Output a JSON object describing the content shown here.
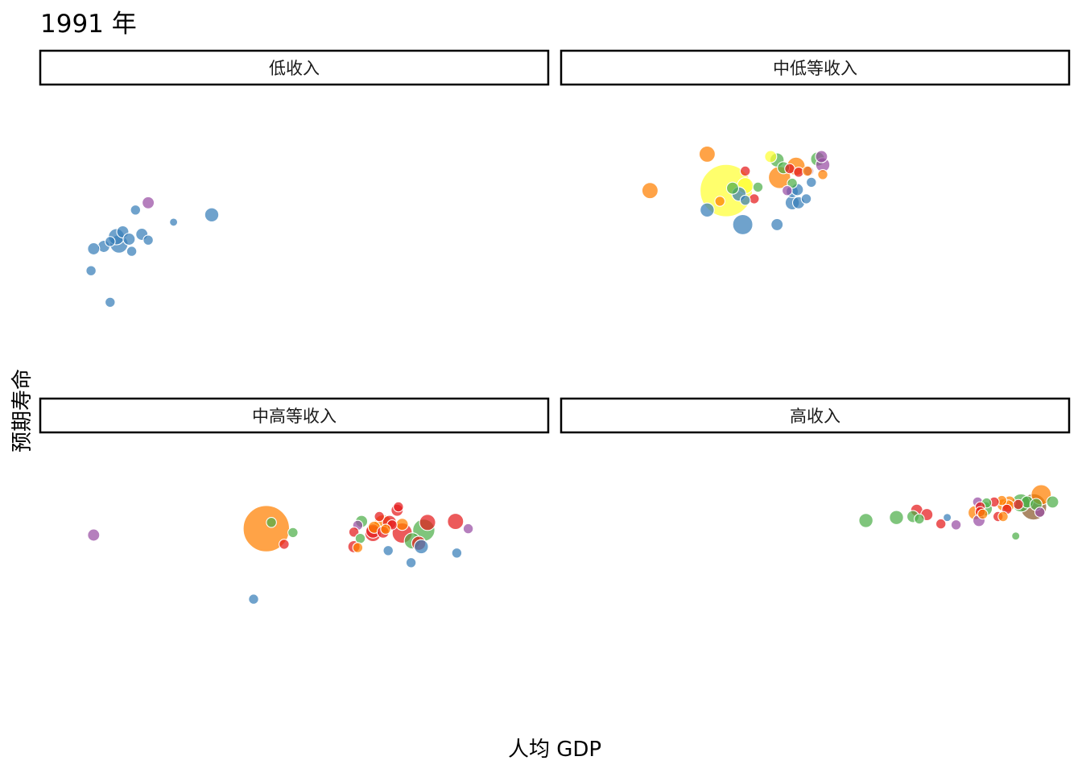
{
  "chart_data": {
    "type": "scatter",
    "title": "1991 年",
    "xlabel": "人均 GDP",
    "ylabel": "预期寿命",
    "x_scale": "log",
    "xlim": [
      7,
      11
    ],
    "ylim": [
      22,
      86
    ],
    "grid": false,
    "legend": "none",
    "series_colors": {
      "Africa": "#377eb8",
      "Americas": "#e41a1c",
      "Asia": "#ff7f00",
      "Europe": "#4daf4a",
      "Oceania": "#984ea3",
      "Asia-large": "#ffff33"
    },
    "panels": [
      {
        "label": "低收入",
        "points": [
          {
            "x": 7.85,
            "y": 62.0,
            "size": 6,
            "c": "#984ea3"
          },
          {
            "x": 7.75,
            "y": 60.5,
            "size": 5,
            "c": "#377eb8"
          },
          {
            "x": 8.35,
            "y": 59.5,
            "size": 7,
            "c": "#377eb8"
          },
          {
            "x": 8.05,
            "y": 58.0,
            "size": 4,
            "c": "#377eb8"
          },
          {
            "x": 7.65,
            "y": 56.0,
            "size": 6,
            "c": "#377eb8"
          },
          {
            "x": 7.6,
            "y": 55.0,
            "size": 8,
            "c": "#377eb8"
          },
          {
            "x": 7.8,
            "y": 55.5,
            "size": 6,
            "c": "#377eb8"
          },
          {
            "x": 7.7,
            "y": 54.5,
            "size": 6,
            "c": "#377eb8"
          },
          {
            "x": 7.55,
            "y": 54.0,
            "size": 5,
            "c": "#377eb8"
          },
          {
            "x": 7.62,
            "y": 53.5,
            "size": 9,
            "c": "#377eb8"
          },
          {
            "x": 7.5,
            "y": 53.0,
            "size": 6,
            "c": "#377eb8"
          },
          {
            "x": 7.85,
            "y": 54.3,
            "size": 5,
            "c": "#377eb8"
          },
          {
            "x": 7.42,
            "y": 52.5,
            "size": 6,
            "c": "#377eb8"
          },
          {
            "x": 7.72,
            "y": 52.0,
            "size": 5,
            "c": "#377eb8"
          },
          {
            "x": 7.4,
            "y": 48.0,
            "size": 5,
            "c": "#377eb8"
          },
          {
            "x": 7.55,
            "y": 41.5,
            "size": 5,
            "c": "#377eb8"
          }
        ]
      },
      {
        "label": "中低等收入",
        "points": [
          {
            "x": 8.15,
            "y": 72.0,
            "size": 8,
            "c": "#ff7f00"
          },
          {
            "x": 8.65,
            "y": 71.5,
            "size": 6,
            "c": "#ffff33"
          },
          {
            "x": 9.05,
            "y": 71.5,
            "size": 6,
            "c": "#984ea3"
          },
          {
            "x": 8.7,
            "y": 70.8,
            "size": 7,
            "c": "#4daf4a"
          },
          {
            "x": 9.02,
            "y": 71.0,
            "size": 7,
            "c": "#4daf4a"
          },
          {
            "x": 8.85,
            "y": 69.5,
            "size": 9,
            "c": "#ff7f00"
          },
          {
            "x": 8.75,
            "y": 69.2,
            "size": 6,
            "c": "#4daf4a"
          },
          {
            "x": 9.06,
            "y": 69.8,
            "size": 7,
            "c": "#984ea3"
          },
          {
            "x": 8.8,
            "y": 69.0,
            "size": 5,
            "c": "#e41a1c"
          },
          {
            "x": 8.95,
            "y": 68.5,
            "size": 5,
            "c": "#984ea3"
          },
          {
            "x": 8.87,
            "y": 68.3,
            "size": 5,
            "c": "#e41a1c"
          },
          {
            "x": 8.45,
            "y": 68.5,
            "size": 5,
            "c": "#e41a1c"
          },
          {
            "x": 8.94,
            "y": 68.5,
            "size": 5,
            "c": "#ff7f00"
          },
          {
            "x": 9.06,
            "y": 67.8,
            "size": 5,
            "c": "#ff7f00"
          },
          {
            "x": 8.72,
            "y": 67.2,
            "size": 11,
            "c": "#ff7f00"
          },
          {
            "x": 8.97,
            "y": 66.2,
            "size": 5,
            "c": "#377eb8"
          },
          {
            "x": 8.82,
            "y": 66.0,
            "size": 5,
            "c": "#4daf4a"
          },
          {
            "x": 8.3,
            "y": 64.5,
            "size": 26,
            "c": "#ffff33"
          },
          {
            "x": 8.45,
            "y": 65.5,
            "size": 8,
            "c": "#ffff33"
          },
          {
            "x": 8.35,
            "y": 65.0,
            "size": 6,
            "c": "#4daf4a"
          },
          {
            "x": 8.55,
            "y": 65.2,
            "size": 5,
            "c": "#4daf4a"
          },
          {
            "x": 8.78,
            "y": 64.5,
            "size": 5,
            "c": "#984ea3"
          },
          {
            "x": 8.82,
            "y": 64.3,
            "size": 6,
            "c": "#377eb8"
          },
          {
            "x": 8.86,
            "y": 64.7,
            "size": 6,
            "c": "#377eb8"
          },
          {
            "x": 8.4,
            "y": 63.8,
            "size": 7,
            "c": "#377eb8"
          },
          {
            "x": 7.7,
            "y": 64.5,
            "size": 8,
            "c": "#ff7f00"
          },
          {
            "x": 8.52,
            "y": 62.8,
            "size": 5,
            "c": "#e41a1c"
          },
          {
            "x": 8.45,
            "y": 62.5,
            "size": 5,
            "c": "#377eb8"
          },
          {
            "x": 8.25,
            "y": 62.3,
            "size": 5,
            "c": "#ff7f00"
          },
          {
            "x": 8.93,
            "y": 62.8,
            "size": 5,
            "c": "#377eb8"
          },
          {
            "x": 8.82,
            "y": 62.0,
            "size": 7,
            "c": "#377eb8"
          },
          {
            "x": 8.87,
            "y": 62.0,
            "size": 6,
            "c": "#377eb8"
          },
          {
            "x": 8.15,
            "y": 60.5,
            "size": 7,
            "c": "#377eb8"
          },
          {
            "x": 8.43,
            "y": 57.5,
            "size": 10,
            "c": "#377eb8"
          },
          {
            "x": 8.7,
            "y": 57.5,
            "size": 6,
            "c": "#377eb8"
          }
        ]
      },
      {
        "label": "中高等收入",
        "points": [
          {
            "x": 9.82,
            "y": 71.0,
            "size": 5,
            "c": "#e41a1c"
          },
          {
            "x": 9.81,
            "y": 70.3,
            "size": 6,
            "c": "#e41a1c"
          },
          {
            "x": 9.67,
            "y": 69.0,
            "size": 5,
            "c": "#e41a1c"
          },
          {
            "x": 9.53,
            "y": 68.0,
            "size": 6,
            "c": "#4daf4a"
          },
          {
            "x": 9.75,
            "y": 67.8,
            "size": 7,
            "c": "#e41a1c"
          },
          {
            "x": 10.05,
            "y": 67.8,
            "size": 8,
            "c": "#e41a1c"
          },
          {
            "x": 10.27,
            "y": 68.0,
            "size": 8,
            "c": "#e41a1c"
          },
          {
            "x": 9.7,
            "y": 67.5,
            "size": 9,
            "c": "#ff7f00"
          },
          {
            "x": 9.85,
            "y": 67.4,
            "size": 6,
            "c": "#ff7f00"
          },
          {
            "x": 9.5,
            "y": 67.2,
            "size": 5,
            "c": "#984ea3"
          },
          {
            "x": 9.77,
            "y": 67.3,
            "size": 5,
            "c": "#e41a1c"
          },
          {
            "x": 9.63,
            "y": 66.8,
            "size": 6,
            "c": "#ff7f00"
          },
          {
            "x": 10.37,
            "y": 66.5,
            "size": 5,
            "c": "#984ea3"
          },
          {
            "x": 9.72,
            "y": 66.4,
            "size": 5,
            "c": "#ff7f00"
          },
          {
            "x": 10.02,
            "y": 66.2,
            "size": 11,
            "c": "#4daf4a"
          },
          {
            "x": 9.62,
            "y": 66.0,
            "size": 7,
            "c": "#e41a1c"
          },
          {
            "x": 9.7,
            "y": 65.8,
            "size": 6,
            "c": "#e41a1c"
          },
          {
            "x": 9.47,
            "y": 65.8,
            "size": 5,
            "c": "#e41a1c"
          },
          {
            "x": 9.85,
            "y": 65.6,
            "size": 10,
            "c": "#e41a1c"
          },
          {
            "x": 9.62,
            "y": 65.5,
            "size": 8,
            "c": "#e41a1c"
          },
          {
            "x": 8.82,
            "y": 67.8,
            "size": 5,
            "c": "#4daf4a"
          },
          {
            "x": 8.78,
            "y": 66.5,
            "size": 23,
            "c": "#ff7f00"
          },
          {
            "x": 8.99,
            "y": 65.7,
            "size": 5,
            "c": "#4daf4a"
          },
          {
            "x": 7.42,
            "y": 65.2,
            "size": 6,
            "c": "#984ea3"
          },
          {
            "x": 9.52,
            "y": 64.5,
            "size": 5,
            "c": "#4daf4a"
          },
          {
            "x": 9.93,
            "y": 64.0,
            "size": 8,
            "c": "#4daf4a"
          },
          {
            "x": 9.98,
            "y": 63.5,
            "size": 7,
            "c": "#e41a1c"
          },
          {
            "x": 8.92,
            "y": 63.3,
            "size": 5,
            "c": "#e41a1c"
          },
          {
            "x": 10.0,
            "y": 62.8,
            "size": 7,
            "c": "#377eb8"
          },
          {
            "x": 9.47,
            "y": 62.8,
            "size": 6,
            "c": "#e41a1c"
          },
          {
            "x": 9.5,
            "y": 62.6,
            "size": 5,
            "c": "#ff7f00"
          },
          {
            "x": 9.74,
            "y": 62.0,
            "size": 5,
            "c": "#377eb8"
          },
          {
            "x": 10.28,
            "y": 61.5,
            "size": 5,
            "c": "#377eb8"
          },
          {
            "x": 9.92,
            "y": 59.5,
            "size": 5,
            "c": "#377eb8"
          },
          {
            "x": 8.68,
            "y": 52.0,
            "size": 5,
            "c": "#377eb8"
          }
        ]
      },
      {
        "label": "高收入",
        "points": [
          {
            "x": 10.78,
            "y": 73.5,
            "size": 10,
            "c": "#ff7f00"
          },
          {
            "x": 10.87,
            "y": 72.0,
            "size": 6,
            "c": "#4daf4a"
          },
          {
            "x": 10.67,
            "y": 72.0,
            "size": 6,
            "c": "#4daf4a"
          },
          {
            "x": 10.47,
            "y": 72.3,
            "size": 5,
            "c": "#ff7f00"
          },
          {
            "x": 10.41,
            "y": 72.0,
            "size": 5,
            "c": "#e41a1c"
          },
          {
            "x": 10.28,
            "y": 72.0,
            "size": 5,
            "c": "#984ea3"
          },
          {
            "x": 10.35,
            "y": 71.8,
            "size": 5,
            "c": "#4daf4a"
          },
          {
            "x": 10.53,
            "y": 72.0,
            "size": 6,
            "c": "#ff7f00"
          },
          {
            "x": 10.62,
            "y": 71.8,
            "size": 9,
            "c": "#4daf4a"
          },
          {
            "x": 10.6,
            "y": 71.5,
            "size": 5,
            "c": "#e41a1c"
          },
          {
            "x": 10.48,
            "y": 71.4,
            "size": 6,
            "c": "#ff7f00"
          },
          {
            "x": 10.74,
            "y": 71.5,
            "size": 6,
            "c": "#4daf4a"
          },
          {
            "x": 10.52,
            "y": 71.2,
            "size": 6,
            "c": "#ff7f00"
          },
          {
            "x": 10.72,
            "y": 71.0,
            "size": 13,
            "c": "#8B5A2B"
          },
          {
            "x": 10.3,
            "y": 71.0,
            "size": 5,
            "c": "#e41a1c"
          },
          {
            "x": 10.34,
            "y": 70.6,
            "size": 7,
            "c": "#4daf4a"
          },
          {
            "x": 10.51,
            "y": 70.5,
            "size": 5,
            "c": "#e41a1c"
          },
          {
            "x": 10.77,
            "y": 69.9,
            "size": 5,
            "c": "#984ea3"
          },
          {
            "x": 9.8,
            "y": 70.3,
            "size": 6,
            "c": "#e41a1c"
          },
          {
            "x": 10.3,
            "y": 70.0,
            "size": 5,
            "c": "#e41a1c"
          },
          {
            "x": 10.26,
            "y": 69.8,
            "size": 7,
            "c": "#ff7f00"
          },
          {
            "x": 9.88,
            "y": 69.4,
            "size": 6,
            "c": "#e41a1c"
          },
          {
            "x": 10.32,
            "y": 69.5,
            "size": 5,
            "c": "#ff7f00"
          },
          {
            "x": 9.77,
            "y": 69.0,
            "size": 6,
            "c": "#4daf4a"
          },
          {
            "x": 10.44,
            "y": 69.0,
            "size": 5,
            "c": "#e41a1c"
          },
          {
            "x": 10.48,
            "y": 69.0,
            "size": 5,
            "c": "#ff7f00"
          },
          {
            "x": 9.64,
            "y": 68.8,
            "size": 7,
            "c": "#4daf4a"
          },
          {
            "x": 10.04,
            "y": 68.8,
            "size": 4,
            "c": "#377eb8"
          },
          {
            "x": 9.82,
            "y": 68.5,
            "size": 5,
            "c": "#4daf4a"
          },
          {
            "x": 9.4,
            "y": 68.2,
            "size": 7,
            "c": "#4daf4a"
          },
          {
            "x": 10.29,
            "y": 68.2,
            "size": 6,
            "c": "#984ea3"
          },
          {
            "x": 9.99,
            "y": 67.5,
            "size": 5,
            "c": "#e41a1c"
          },
          {
            "x": 10.11,
            "y": 67.3,
            "size": 5,
            "c": "#984ea3"
          },
          {
            "x": 10.58,
            "y": 65.0,
            "size": 4,
            "c": "#4daf4a"
          }
        ]
      }
    ]
  }
}
